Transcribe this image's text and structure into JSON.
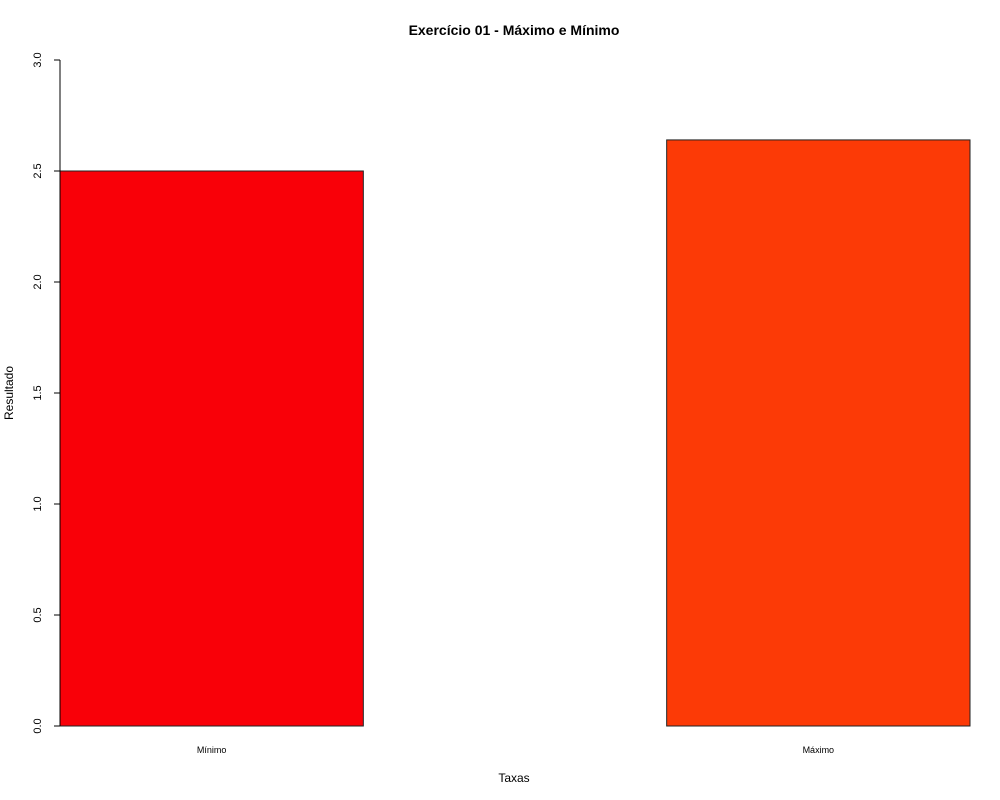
{
  "chart_data": {
    "type": "bar",
    "title": "Exercício 01 - Máximo e Mínimo",
    "xlabel": "Taxas",
    "ylabel": "Resultado",
    "categories": [
      "Mínimo",
      "Máximo"
    ],
    "values": [
      2.5,
      2.64
    ],
    "colors": [
      "#f90008",
      "#fc3a06"
    ],
    "ylim": [
      0,
      3
    ],
    "yticks": [
      0.0,
      0.5,
      1.0,
      1.5,
      2.0,
      2.5,
      3.0
    ],
    "ytick_labels": [
      "0.0",
      "0.5",
      "1.0",
      "1.5",
      "2.0",
      "2.5",
      "3.0"
    ],
    "grid": false,
    "legend": "none"
  }
}
